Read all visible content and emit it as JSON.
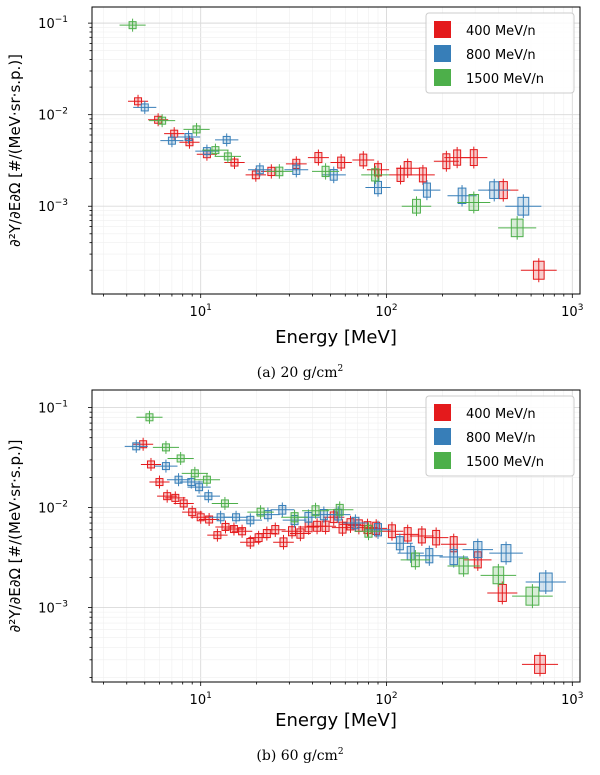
{
  "chart_data": [
    {
      "type": "scatter",
      "caption": {
        "label": "(a)",
        "value": "20",
        "unit": "g/cm",
        "exponent": "2"
      },
      "xlabel": "Energy [MeV]",
      "ylabel": "∂²Y/∂E∂Ω [#/(MeV·sr·s.p.)]",
      "xscale": "log",
      "yscale": "log",
      "xlim": [
        2.6,
        1100
      ],
      "ylim": [
        0.00011,
        0.15
      ],
      "x_ticks": [
        {
          "v": 10,
          "base": "10",
          "exp": "1"
        },
        {
          "v": 100,
          "base": "10",
          "exp": "2"
        },
        {
          "v": 1000,
          "base": "10",
          "exp": "3"
        }
      ],
      "y_ticks": [
        {
          "v": 0.001,
          "base": "10",
          "exp": "−3"
        },
        {
          "v": 0.01,
          "base": "10",
          "exp": "−2"
        },
        {
          "v": 0.1,
          "base": "10",
          "exp": "−1"
        }
      ],
      "grid": true,
      "legend_position": "top-right",
      "series": [
        {
          "name": "400 MeV/n",
          "color": "#e41a1c",
          "points": [
            {
              "x": 4.6,
              "y": 0.014
            },
            {
              "x": 5.9,
              "y": 0.0088
            },
            {
              "x": 7.2,
              "y": 0.0062
            },
            {
              "x": 8.7,
              "y": 0.005
            },
            {
              "x": 10.8,
              "y": 0.0037
            },
            {
              "x": 15.2,
              "y": 0.003
            },
            {
              "x": 19.8,
              "y": 0.0022
            },
            {
              "x": 24.0,
              "y": 0.0024
            },
            {
              "x": 32.7,
              "y": 0.0029
            },
            {
              "x": 43.0,
              "y": 0.0034
            },
            {
              "x": 57.0,
              "y": 0.003
            },
            {
              "x": 75.0,
              "y": 0.0032
            },
            {
              "x": 90.0,
              "y": 0.0025
            },
            {
              "x": 119.0,
              "y": 0.0022
            },
            {
              "x": 130.0,
              "y": 0.0026
            },
            {
              "x": 157.0,
              "y": 0.0022
            },
            {
              "x": 210.0,
              "y": 0.0031
            },
            {
              "x": 240.0,
              "y": 0.0034
            },
            {
              "x": 295.0,
              "y": 0.0034
            },
            {
              "x": 425.0,
              "y": 0.0015
            },
            {
              "x": 660.0,
              "y": 0.0002
            }
          ]
        },
        {
          "name": "800 MeV/n",
          "color": "#377eb8",
          "points": [
            {
              "x": 5.0,
              "y": 0.012
            },
            {
              "x": 7.0,
              "y": 0.0052
            },
            {
              "x": 8.6,
              "y": 0.0057
            },
            {
              "x": 10.8,
              "y": 0.004
            },
            {
              "x": 13.8,
              "y": 0.0053
            },
            {
              "x": 20.8,
              "y": 0.0025
            },
            {
              "x": 32.7,
              "y": 0.0025
            },
            {
              "x": 52.0,
              "y": 0.0022
            },
            {
              "x": 90.0,
              "y": 0.0016
            },
            {
              "x": 165.0,
              "y": 0.0015
            },
            {
              "x": 255.0,
              "y": 0.0013
            },
            {
              "x": 380.0,
              "y": 0.0015
            },
            {
              "x": 545.0,
              "y": 0.001
            }
          ]
        },
        {
          "name": "1500 MeV/n",
          "color": "#4daf4a",
          "points": [
            {
              "x": 4.3,
              "y": 0.095
            },
            {
              "x": 6.2,
              "y": 0.0086
            },
            {
              "x": 9.5,
              "y": 0.0069
            },
            {
              "x": 12.0,
              "y": 0.0041
            },
            {
              "x": 14.0,
              "y": 0.0035
            },
            {
              "x": 26.5,
              "y": 0.0024
            },
            {
              "x": 47.0,
              "y": 0.0024
            },
            {
              "x": 87.0,
              "y": 0.0022
            },
            {
              "x": 145.0,
              "y": 0.001
            },
            {
              "x": 295.0,
              "y": 0.0011
            },
            {
              "x": 505.0,
              "y": 0.00058
            }
          ]
        }
      ]
    },
    {
      "type": "scatter",
      "caption": {
        "label": "(b)",
        "value": "60",
        "unit": "g/cm",
        "exponent": "2"
      },
      "xlabel": "Energy [MeV]",
      "ylabel": "∂²Y/∂E∂Ω [#/(MeV·sr·s.p.)]",
      "xscale": "log",
      "yscale": "log",
      "xlim": [
        2.6,
        1100
      ],
      "ylim": [
        0.00018,
        0.15
      ],
      "x_ticks": [
        {
          "v": 10,
          "base": "10",
          "exp": "1"
        },
        {
          "v": 100,
          "base": "10",
          "exp": "2"
        },
        {
          "v": 1000,
          "base": "10",
          "exp": "3"
        }
      ],
      "y_ticks": [
        {
          "v": 0.001,
          "base": "10",
          "exp": "−3"
        },
        {
          "v": 0.01,
          "base": "10",
          "exp": "−2"
        },
        {
          "v": 0.1,
          "base": "10",
          "exp": "−1"
        }
      ],
      "grid": true,
      "legend_position": "top-right",
      "series": [
        {
          "name": "400 MeV/n",
          "color": "#e41a1c",
          "points": [
            {
              "x": 4.9,
              "y": 0.043
            },
            {
              "x": 5.4,
              "y": 0.027
            },
            {
              "x": 6.0,
              "y": 0.018
            },
            {
              "x": 6.6,
              "y": 0.013
            },
            {
              "x": 7.3,
              "y": 0.0125
            },
            {
              "x": 8.1,
              "y": 0.011
            },
            {
              "x": 9.0,
              "y": 0.009
            },
            {
              "x": 10.0,
              "y": 0.008
            },
            {
              "x": 11.1,
              "y": 0.0076
            },
            {
              "x": 12.3,
              "y": 0.0053
            },
            {
              "x": 13.6,
              "y": 0.0064
            },
            {
              "x": 15.1,
              "y": 0.0061
            },
            {
              "x": 16.7,
              "y": 0.0058
            },
            {
              "x": 18.5,
              "y": 0.0045
            },
            {
              "x": 20.5,
              "y": 0.005
            },
            {
              "x": 22.7,
              "y": 0.0055
            },
            {
              "x": 25.2,
              "y": 0.006
            },
            {
              "x": 27.9,
              "y": 0.0045
            },
            {
              "x": 31.0,
              "y": 0.0058
            },
            {
              "x": 34.4,
              "y": 0.0055
            },
            {
              "x": 38.1,
              "y": 0.0064
            },
            {
              "x": 42.3,
              "y": 0.0065
            },
            {
              "x": 47.0,
              "y": 0.0065
            },
            {
              "x": 52.0,
              "y": 0.008
            },
            {
              "x": 58.0,
              "y": 0.0063
            },
            {
              "x": 64.0,
              "y": 0.0068
            },
            {
              "x": 71.0,
              "y": 0.0066
            },
            {
              "x": 79.0,
              "y": 0.0063
            },
            {
              "x": 88.0,
              "y": 0.0062
            },
            {
              "x": 107.0,
              "y": 0.0058
            },
            {
              "x": 130.0,
              "y": 0.0054
            },
            {
              "x": 155.0,
              "y": 0.0052
            },
            {
              "x": 185.0,
              "y": 0.005
            },
            {
              "x": 230.0,
              "y": 0.0043
            },
            {
              "x": 310.0,
              "y": 0.003
            },
            {
              "x": 420.0,
              "y": 0.0014
            },
            {
              "x": 670.0,
              "y": 0.00027
            }
          ]
        },
        {
          "name": "800 MeV/n",
          "color": "#377eb8",
          "points": [
            {
              "x": 4.5,
              "y": 0.041
            },
            {
              "x": 6.5,
              "y": 0.026
            },
            {
              "x": 7.6,
              "y": 0.019
            },
            {
              "x": 8.9,
              "y": 0.018
            },
            {
              "x": 9.8,
              "y": 0.016
            },
            {
              "x": 11.0,
              "y": 0.013
            },
            {
              "x": 12.8,
              "y": 0.008
            },
            {
              "x": 15.5,
              "y": 0.008
            },
            {
              "x": 18.5,
              "y": 0.0075
            },
            {
              "x": 23.0,
              "y": 0.0085
            },
            {
              "x": 27.5,
              "y": 0.0095
            },
            {
              "x": 32.0,
              "y": 0.0075
            },
            {
              "x": 38.0,
              "y": 0.008
            },
            {
              "x": 46.0,
              "y": 0.0085
            },
            {
              "x": 55.0,
              "y": 0.0085
            },
            {
              "x": 68.0,
              "y": 0.007
            },
            {
              "x": 90.0,
              "y": 0.006
            },
            {
              "x": 118.0,
              "y": 0.0044
            },
            {
              "x": 135.0,
              "y": 0.0035
            },
            {
              "x": 170.0,
              "y": 0.0033
            },
            {
              "x": 230.0,
              "y": 0.0032
            },
            {
              "x": 310.0,
              "y": 0.0038
            },
            {
              "x": 440.0,
              "y": 0.0035
            },
            {
              "x": 720.0,
              "y": 0.0018
            }
          ]
        },
        {
          "name": "1500 MeV/n",
          "color": "#4daf4a",
          "points": [
            {
              "x": 5.3,
              "y": 0.08
            },
            {
              "x": 6.5,
              "y": 0.04
            },
            {
              "x": 7.8,
              "y": 0.031
            },
            {
              "x": 9.3,
              "y": 0.022
            },
            {
              "x": 10.8,
              "y": 0.019
            },
            {
              "x": 13.5,
              "y": 0.011
            },
            {
              "x": 21.0,
              "y": 0.009
            },
            {
              "x": 32.0,
              "y": 0.008
            },
            {
              "x": 41.5,
              "y": 0.0093
            },
            {
              "x": 56.0,
              "y": 0.0095
            },
            {
              "x": 80.0,
              "y": 0.0058
            },
            {
              "x": 143.0,
              "y": 0.003
            },
            {
              "x": 260.0,
              "y": 0.0026
            },
            {
              "x": 400.0,
              "y": 0.0021
            },
            {
              "x": 610.0,
              "y": 0.0013
            }
          ]
        }
      ]
    }
  ]
}
